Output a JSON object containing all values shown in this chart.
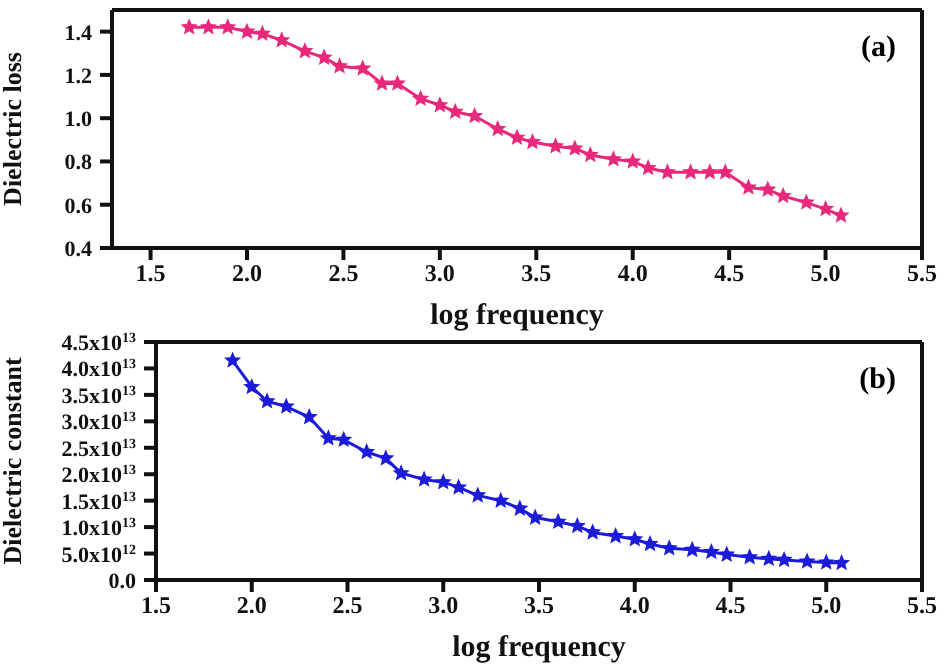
{
  "chart_data": [
    {
      "type": "line",
      "xlabel": "log frequency",
      "ylabel": "Dielectric loss",
      "annotations": [
        "(a)"
      ],
      "marker": "star",
      "xlim": [
        1.3,
        5.5
      ],
      "xticks": [
        1.5,
        {
          "value": 2,
          "label": "2.0"
        },
        2.5,
        {
          "value": 3,
          "label": "3.0"
        },
        3.5,
        {
          "value": 4,
          "label": "4.0"
        },
        4.5,
        {
          "value": 5,
          "label": "5.0"
        },
        5.5
      ],
      "ylim": [
        0.4,
        1.5
      ],
      "yticks": [
        0.4,
        0.6,
        0.8,
        {
          "value": 1,
          "label": "1.0"
        },
        1.2,
        1.4
      ],
      "x": [
        1.7,
        1.8,
        1.9,
        2.0,
        2.08,
        2.18,
        2.3,
        2.4,
        2.48,
        2.6,
        2.7,
        2.78,
        2.9,
        3.0,
        3.08,
        3.18,
        3.3,
        3.4,
        3.48,
        3.6,
        3.7,
        3.78,
        3.9,
        4.0,
        4.08,
        4.18,
        4.3,
        4.4,
        4.48,
        4.6,
        4.7,
        4.78,
        4.9,
        5.0,
        5.08
      ],
      "series": [
        {
          "color": "#e8287a",
          "values": [
            1.42,
            1.42,
            1.42,
            1.4,
            1.39,
            1.36,
            1.31,
            1.28,
            1.24,
            1.23,
            1.16,
            1.16,
            1.09,
            1.06,
            1.03,
            1.01,
            0.95,
            0.91,
            0.89,
            0.87,
            0.86,
            0.83,
            0.81,
            0.8,
            0.77,
            0.75,
            0.75,
            0.75,
            0.75,
            0.68,
            0.67,
            0.64,
            0.61,
            0.58,
            0.55
          ]
        }
      ]
    },
    {
      "type": "line",
      "xlabel": "log frequency",
      "ylabel": "Dielectric constant",
      "annotations": [
        "(b)"
      ],
      "marker": "star",
      "xlim": [
        1.5,
        5.5
      ],
      "xticks": [
        1.5,
        {
          "value": 2,
          "label": "2.0"
        },
        2.5,
        {
          "value": 3,
          "label": "3.0"
        },
        3.5,
        {
          "value": 4,
          "label": "4.0"
        },
        4.5,
        {
          "value": 5,
          "label": "5.0"
        },
        5.5
      ],
      "ylim": [
        0,
        45000000000000
      ],
      "yticks": [
        {
          "value": 0,
          "label": "0.0"
        },
        {
          "value": 5000000000000,
          "label": "5.0x10$^{12}$"
        },
        {
          "value": 10000000000000,
          "label": "1.0x10$^{13}$"
        },
        {
          "value": 15000000000000,
          "label": "1.5x10$^{13}$"
        },
        {
          "value": 20000000000000,
          "label": "2.0x10$^{13}$"
        },
        {
          "value": 25000000000000,
          "label": "2.5x10$^{13}$"
        },
        {
          "value": 30000000000000,
          "label": "3.0x10$^{13}$"
        },
        {
          "value": 35000000000000,
          "label": "3.5x10$^{13}$"
        },
        {
          "value": 40000000000000,
          "label": "4.0x10$^{13}$"
        },
        {
          "value": 45000000000000,
          "label": "4.5x10$^{13}$"
        }
      ],
      "x": [
        1.9,
        2.0,
        2.08,
        2.18,
        2.3,
        2.4,
        2.48,
        2.6,
        2.7,
        2.78,
        2.9,
        3.0,
        3.08,
        3.18,
        3.3,
        3.4,
        3.48,
        3.6,
        3.7,
        3.78,
        3.9,
        4.0,
        4.08,
        4.18,
        4.3,
        4.4,
        4.48,
        4.6,
        4.7,
        4.78,
        4.9,
        5.0,
        5.08
      ],
      "series": [
        {
          "color": "#1c1cd8",
          "values": [
            41500000000000,
            36500000000000,
            33800000000000,
            32800000000000,
            30800000000000,
            26800000000000,
            26500000000000,
            24200000000000,
            23000000000000,
            20200000000000,
            19000000000000,
            18500000000000,
            17500000000000,
            16000000000000,
            15000000000000,
            13500000000000,
            11800000000000,
            11000000000000,
            10200000000000,
            9000000000000,
            8300000000000,
            7700000000000,
            6800000000000,
            6000000000000,
            5700000000000,
            5300000000000,
            4800000000000,
            4300000000000,
            4000000000000,
            3800000000000,
            3500000000000,
            3300000000000,
            3200000000000
          ]
        }
      ]
    }
  ]
}
